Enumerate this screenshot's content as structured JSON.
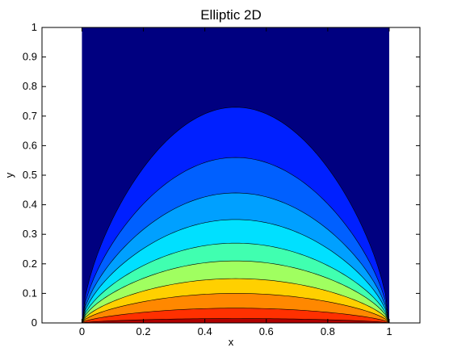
{
  "chart_data": {
    "type": "contour",
    "title": "Elliptic 2D",
    "xlabel": "x",
    "ylabel": "y",
    "xlim": [
      -0.13,
      1.1
    ],
    "ylim": [
      0,
      1
    ],
    "data_xrange": [
      0,
      1
    ],
    "xticks": [
      0,
      0.2,
      0.4,
      0.6,
      0.8,
      1
    ],
    "xtick_labels": [
      "0",
      "0.2",
      "0.4",
      "0.6",
      "0.8",
      "1"
    ],
    "yticks": [
      0,
      0.1,
      0.2,
      0.3,
      0.4,
      0.5,
      0.6,
      0.7,
      0.8,
      0.9,
      1
    ],
    "ytick_labels": [
      "0",
      "0.1",
      "0.2",
      "0.3",
      "0.4",
      "0.5",
      "0.6",
      "0.7",
      "0.8",
      "0.9",
      "1"
    ],
    "grid": false,
    "colormap": "jet",
    "background_color": "#000080",
    "contours": [
      {
        "peak_y": 0.73,
        "fill": "#0020ff"
      },
      {
        "peak_y": 0.56,
        "fill": "#0060ff"
      },
      {
        "peak_y": 0.44,
        "fill": "#00a0ff"
      },
      {
        "peak_y": 0.35,
        "fill": "#00e0ff"
      },
      {
        "peak_y": 0.27,
        "fill": "#40ffb0"
      },
      {
        "peak_y": 0.21,
        "fill": "#a0ff60"
      },
      {
        "peak_y": 0.15,
        "fill": "#ffd000"
      },
      {
        "peak_y": 0.1,
        "fill": "#ff8800"
      },
      {
        "peak_y": 0.05,
        "fill": "#ff3000"
      },
      {
        "peak_y": 0.015,
        "fill": "#b00000"
      }
    ]
  }
}
